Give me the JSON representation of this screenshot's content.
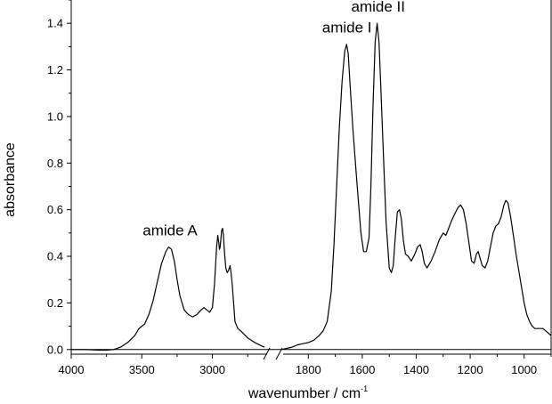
{
  "chart_data": {
    "type": "line",
    "title": "",
    "xlabel": "wavenumber / cm",
    "xlabel_superscript": "-1",
    "ylabel": "absorbance",
    "x_reversed": true,
    "axis_break": "broken x axis between 2600 and 1900",
    "segments": [
      {
        "xlim": [
          4000,
          2600
        ],
        "ticks": [
          4000,
          3500,
          3000
        ],
        "tick_labels": [
          "4000",
          "3500",
          "3000"
        ]
      },
      {
        "xlim": [
          1900,
          900
        ],
        "ticks": [
          1800,
          1600,
          1400,
          1200,
          1000
        ],
        "tick_labels": [
          "1800",
          "1600",
          "1400",
          "1200",
          "1000"
        ]
      }
    ],
    "ylim": [
      -0.02,
      1.5
    ],
    "yticks": [
      0.0,
      0.2,
      0.4,
      0.6,
      0.8,
      1.0,
      1.2,
      1.4
    ],
    "ytick_labels": [
      "0.0",
      "0.2",
      "0.4",
      "0.6",
      "0.8",
      "1.0",
      "1.2",
      "1.4"
    ],
    "grid": false,
    "legend": "none",
    "series": [
      {
        "color": "#000000",
        "segments": [
          {
            "x": [
              4000,
              3900,
              3800,
              3750,
              3700,
              3650,
              3600,
              3550,
              3520,
              3500,
              3480,
              3450,
              3420,
              3390,
              3360,
              3330,
              3310,
              3290,
              3270,
              3250,
              3230,
              3200,
              3170,
              3140,
              3110,
              3080,
              3060,
              3040,
              3020,
              3000,
              2985,
              2970,
              2962,
              2955,
              2950,
              2945,
              2935,
              2928,
              2922,
              2915,
              2905,
              2895,
              2885,
              2875,
              2868,
              2860,
              2850,
              2840,
              2820,
              2800,
              2750,
              2700,
              2650,
              2630
            ],
            "y": [
              0.0,
              0.0,
              -0.003,
              -0.003,
              0.0,
              0.01,
              0.03,
              0.06,
              0.09,
              0.1,
              0.11,
              0.15,
              0.21,
              0.29,
              0.37,
              0.42,
              0.44,
              0.43,
              0.38,
              0.3,
              0.23,
              0.17,
              0.15,
              0.14,
              0.15,
              0.17,
              0.18,
              0.17,
              0.16,
              0.18,
              0.28,
              0.44,
              0.49,
              0.46,
              0.43,
              0.44,
              0.51,
              0.52,
              0.49,
              0.42,
              0.35,
              0.33,
              0.34,
              0.36,
              0.33,
              0.28,
              0.2,
              0.12,
              0.09,
              0.08,
              0.05,
              0.03,
              0.015,
              0.01
            ]
          },
          {
            "x": [
              1900,
              1880,
              1860,
              1840,
              1820,
              1800,
              1780,
              1760,
              1745,
              1730,
              1715,
              1705,
              1695,
              1685,
              1675,
              1665,
              1658,
              1652,
              1645,
              1635,
              1620,
              1605,
              1595,
              1585,
              1575,
              1568,
              1560,
              1552,
              1545,
              1538,
              1532,
              1522,
              1512,
              1500,
              1492,
              1485,
              1478,
              1470,
              1462,
              1455,
              1448,
              1440,
              1430,
              1418,
              1405,
              1395,
              1385,
              1378,
              1370,
              1360,
              1345,
              1330,
              1315,
              1300,
              1290,
              1280,
              1270,
              1258,
              1245,
              1235,
              1225,
              1215,
              1205,
              1195,
              1185,
              1177,
              1170,
              1163,
              1155,
              1145,
              1135,
              1125,
              1115,
              1105,
              1095,
              1085,
              1075,
              1068,
              1060,
              1050,
              1040,
              1030,
              1020,
              1010,
              1000,
              990,
              980,
              970,
              960,
              950,
              940,
              930,
              920,
              910,
              900
            ],
            "y": [
              0.0,
              0.005,
              0.01,
              0.02,
              0.025,
              0.03,
              0.04,
              0.06,
              0.08,
              0.12,
              0.25,
              0.45,
              0.7,
              0.95,
              1.15,
              1.28,
              1.31,
              1.27,
              1.13,
              0.95,
              0.72,
              0.5,
              0.42,
              0.42,
              0.48,
              0.7,
              1.05,
              1.32,
              1.4,
              1.32,
              1.15,
              0.85,
              0.55,
              0.35,
              0.33,
              0.36,
              0.48,
              0.59,
              0.6,
              0.56,
              0.47,
              0.41,
              0.4,
              0.38,
              0.41,
              0.44,
              0.45,
              0.42,
              0.37,
              0.35,
              0.38,
              0.42,
              0.47,
              0.5,
              0.49,
              0.52,
              0.55,
              0.58,
              0.61,
              0.62,
              0.6,
              0.54,
              0.46,
              0.38,
              0.37,
              0.41,
              0.42,
              0.39,
              0.36,
              0.35,
              0.38,
              0.44,
              0.5,
              0.53,
              0.54,
              0.57,
              0.62,
              0.64,
              0.63,
              0.57,
              0.49,
              0.41,
              0.34,
              0.27,
              0.2,
              0.15,
              0.12,
              0.1,
              0.09,
              0.09,
              0.09,
              0.09,
              0.08,
              0.07,
              0.06
            ]
          }
        ]
      }
    ],
    "annotations": [
      {
        "text": "amide A",
        "x": 3300,
        "y": 0.49
      },
      {
        "text": "amide I",
        "x": 1657,
        "y": 1.36
      },
      {
        "text": "amide II",
        "x": 1541,
        "y": 1.45
      }
    ]
  }
}
